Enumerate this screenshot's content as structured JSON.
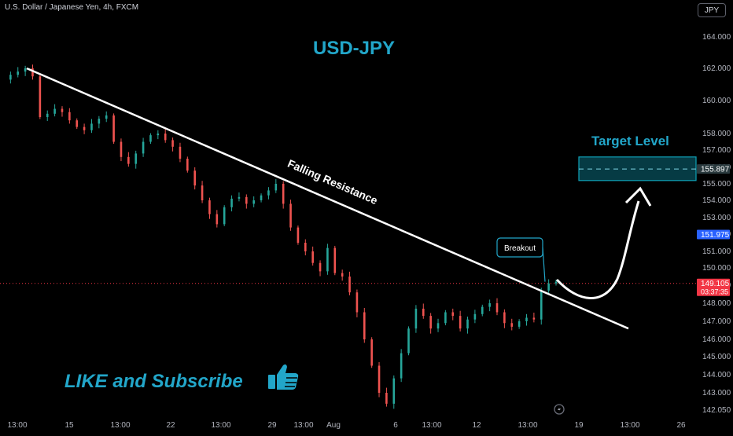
{
  "header": {
    "symbol_title": "U.S. Dollar / Japanese Yen, 4h, FXCM",
    "currency_button": "JPY"
  },
  "chart_data": {
    "type": "candlestick",
    "title": "USD-JPY",
    "x_tick_labels": [
      "13:00",
      "15",
      "13:00",
      "22",
      "13:00",
      "29",
      "13:00",
      "Aug",
      "6",
      "13:00",
      "12",
      "13:00",
      "19",
      "13:00",
      "26"
    ],
    "y_tick_values": [
      164.0,
      162.0,
      160.0,
      158.0,
      157.0,
      156.0,
      155.0,
      154.0,
      153.0,
      152.0,
      151.0,
      150.0,
      149.0,
      148.0,
      147.0,
      146.0,
      145.0,
      144.0,
      143.0,
      142.05
    ],
    "y_tick_labels": [
      "164.000",
      "162.000",
      "160.000",
      "158.000",
      "157.000",
      "156.000",
      "155.000",
      "154.000",
      "153.000",
      "152.000",
      "151.000",
      "150.000",
      "149.000",
      "148.000",
      "147.000",
      "146.000",
      "145.000",
      "144.000",
      "143.000",
      "142.050"
    ],
    "price_path": [
      161.3,
      161.6,
      161.8,
      162.0,
      161.5,
      159.0,
      159.2,
      159.5,
      159.3,
      158.8,
      158.4,
      158.2,
      158.6,
      158.9,
      159.1,
      157.5,
      156.6,
      156.2,
      156.8,
      157.5,
      157.9,
      158.0,
      157.6,
      157.2,
      156.5,
      155.8,
      154.9,
      154.0,
      153.2,
      152.6,
      153.6,
      154.1,
      154.2,
      153.8,
      154.0,
      154.3,
      154.6,
      155.0,
      153.8,
      152.4,
      151.5,
      151.0,
      150.3,
      149.8,
      151.2,
      149.7,
      149.5,
      148.6,
      147.5,
      146.0,
      144.5,
      143.0,
      142.4,
      143.8,
      145.2,
      146.6,
      147.7,
      147.3,
      146.6,
      146.9,
      147.5,
      147.3,
      146.6,
      147.1,
      147.4,
      147.8,
      148.0,
      147.5,
      146.9,
      146.7,
      147.0,
      147.2,
      147.1,
      148.7,
      149.1,
      149.2
    ],
    "trendline": {
      "start_label": "13:00",
      "start_price": 162.0,
      "end_label": "19",
      "end_price": 146.6
    },
    "last_price": "149.105",
    "countdown": "03:37:35",
    "marked_price": "151.975",
    "target_price": "155.897",
    "target_zone": [
      155.2,
      156.6
    ],
    "annotations": {
      "trendline_label": "Falling Resistance",
      "breakout_label": "Breakout",
      "target_label": "Target Level",
      "subscribe": "LIKE and Subscribe"
    },
    "colors": {
      "background": "#000000",
      "bull": "#26a69a",
      "bear": "#ef5350",
      "accent": "#22a6c9",
      "last_price": "#f23645",
      "marked_price": "#2962ff",
      "target": "#0b7285"
    }
  }
}
